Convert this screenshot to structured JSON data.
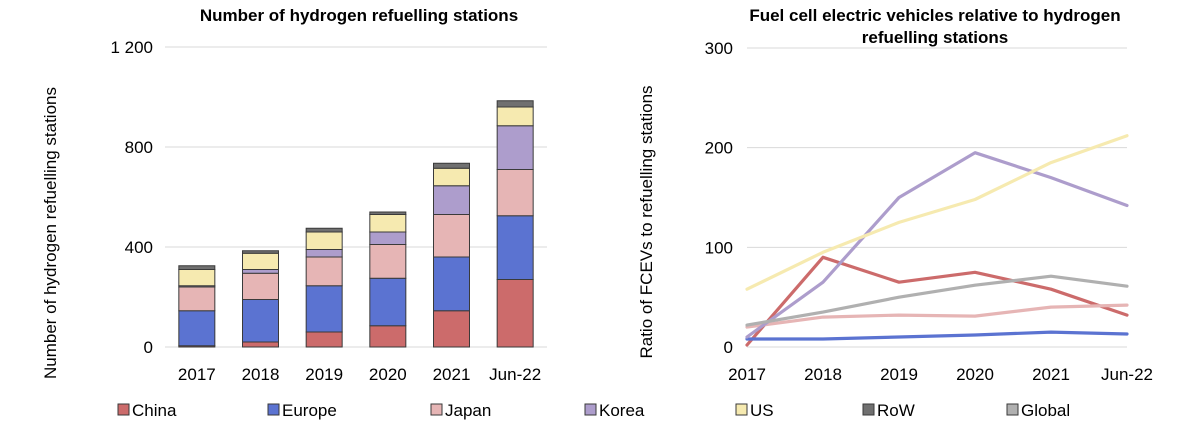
{
  "chart_data": [
    {
      "type": "bar",
      "stacked": true,
      "title": "Number of hydrogen refuelling stations",
      "ylabel": "Number of hydrogen refuelling stations",
      "xlabel": "",
      "ylim": [
        0,
        1200
      ],
      "yticks": [
        0,
        400,
        800,
        1200
      ],
      "ytick_labels": [
        "0",
        "400",
        "800",
        "1 200"
      ],
      "grid": true,
      "categories": [
        "2017",
        "2018",
        "2019",
        "2020",
        "2021",
        "Jun-22"
      ],
      "series": [
        {
          "name": "China",
          "color": "#cc6b6b",
          "values": [
            5,
            20,
            60,
            85,
            145,
            270
          ]
        },
        {
          "name": "Europe",
          "color": "#5b73d1",
          "values": [
            140,
            170,
            185,
            190,
            215,
            255
          ]
        },
        {
          "name": "Japan",
          "color": "#e6b5b5",
          "values": [
            95,
            105,
            115,
            135,
            170,
            185
          ]
        },
        {
          "name": "Korea",
          "color": "#ad9dcc",
          "values": [
            5,
            15,
            30,
            50,
            115,
            175
          ]
        },
        {
          "name": "US",
          "color": "#f6eab0",
          "values": [
            65,
            65,
            70,
            70,
            70,
            75
          ]
        },
        {
          "name": "RoW",
          "color": "#707070",
          "values": [
            15,
            10,
            15,
            10,
            20,
            25
          ]
        }
      ]
    },
    {
      "type": "line",
      "title": "Fuel cell electric vehicles relative to hydrogen refuelling stations",
      "ylabel": "Ratio of FCEVs to refuelling stations",
      "xlabel": "",
      "ylim": [
        0,
        300
      ],
      "yticks": [
        0,
        100,
        200,
        300
      ],
      "grid": true,
      "x": [
        "2017",
        "2018",
        "2019",
        "2020",
        "2021",
        "Jun-22"
      ],
      "series": [
        {
          "name": "China",
          "color": "#cc6b6b",
          "values": [
            2,
            90,
            65,
            75,
            58,
            32
          ]
        },
        {
          "name": "Europe",
          "color": "#5b73d1",
          "values": [
            8,
            8,
            10,
            12,
            15,
            13
          ]
        },
        {
          "name": "Japan",
          "color": "#e6b5b5",
          "values": [
            20,
            30,
            32,
            31,
            40,
            42
          ]
        },
        {
          "name": "Korea",
          "color": "#ad9dcc",
          "values": [
            10,
            65,
            150,
            195,
            170,
            142
          ]
        },
        {
          "name": "US",
          "color": "#f6eab0",
          "values": [
            58,
            95,
            125,
            148,
            185,
            212
          ]
        },
        {
          "name": "RoW",
          "color": "#707070",
          "values": [
            null,
            null,
            null,
            null,
            null,
            null
          ]
        },
        {
          "name": "Global",
          "color": "#b0b0b0",
          "values": [
            22,
            35,
            50,
            62,
            71,
            61
          ]
        }
      ]
    }
  ],
  "legend": [
    {
      "name": "China",
      "color": "#cc6b6b"
    },
    {
      "name": "Europe",
      "color": "#5b73d1"
    },
    {
      "name": "Japan",
      "color": "#e6b5b5"
    },
    {
      "name": "Korea",
      "color": "#ad9dcc"
    },
    {
      "name": "US",
      "color": "#f6eab0"
    },
    {
      "name": "RoW",
      "color": "#707070"
    },
    {
      "name": "Global",
      "color": "#b0b0b0"
    }
  ]
}
